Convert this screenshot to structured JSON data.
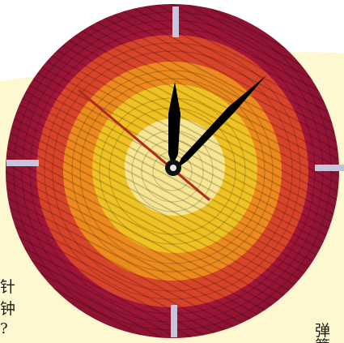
{
  "visible_text": {
    "line_1": "针",
    "line_2": "钟",
    "line_3": "?",
    "line_4": "弹簧"
  },
  "clock": {
    "hour_markers": 4,
    "ring_colors": [
      "#a4163a",
      "#d8442a",
      "#ec8a1e",
      "#efc224",
      "#f6e592"
    ],
    "hand_color": "#000000",
    "second_hand_color": "#b22a1e",
    "marker_color": "#c8c4dc"
  },
  "background": {
    "top_color": "#ffffff",
    "bottom_color": "#fdf8d0"
  }
}
